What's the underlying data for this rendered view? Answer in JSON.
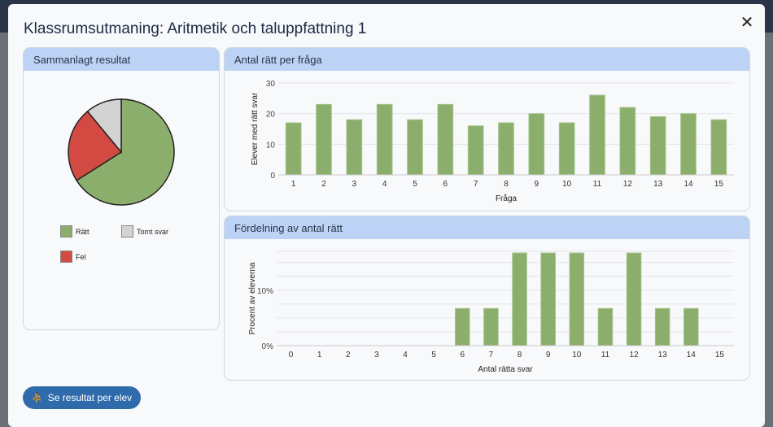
{
  "modal": {
    "title": "Klassrumsutmaning: Aritmetik och taluppfattning 1",
    "close_icon": "close-icon"
  },
  "cards": {
    "summary": "Sammanlagt resultat",
    "per_question": "Antal rätt per fråga",
    "distribution": "Fördelning av antal rätt"
  },
  "button": {
    "label": "Se resultat per elev",
    "icon": "people-icon"
  },
  "colors": {
    "green": "#8cae6c",
    "red": "#d34a43",
    "gray": "#d3d3d3"
  },
  "chart_data": [
    {
      "type": "pie",
      "title": "Sammanlagt resultat",
      "slices": [
        {
          "label": "Rätt",
          "value": 66,
          "color": "#8cae6c"
        },
        {
          "label": "Fel",
          "value": 23,
          "color": "#d34a43"
        },
        {
          "label": "Tomt svar",
          "value": 11,
          "color": "#d3d3d3"
        }
      ],
      "legend": "bottom"
    },
    {
      "type": "bar",
      "title": "Antal rätt per fråga",
      "xlabel": "Fråga",
      "ylabel": "Elever med rätt svar",
      "categories": [
        "1",
        "2",
        "3",
        "4",
        "5",
        "6",
        "7",
        "8",
        "9",
        "10",
        "11",
        "12",
        "13",
        "14",
        "15"
      ],
      "values": [
        17,
        23,
        18,
        23,
        18,
        23,
        16,
        17,
        20,
        17,
        26,
        22,
        19,
        20,
        18
      ],
      "ylim": [
        0,
        30
      ],
      "yticks": [
        "0",
        "10",
        "20",
        "30"
      ],
      "grid": true
    },
    {
      "type": "bar",
      "title": "Fördelning av antal rätt",
      "xlabel": "Antal rätta svar",
      "ylabel": "Procent av eleverna",
      "categories": [
        "0",
        "1",
        "2",
        "3",
        "4",
        "5",
        "6",
        "7",
        "8",
        "9",
        "10",
        "11",
        "12",
        "13",
        "14",
        "15"
      ],
      "values": [
        0,
        0,
        0,
        0,
        0,
        0,
        6.7,
        6.7,
        16.7,
        16.7,
        16.7,
        6.7,
        16.7,
        6.7,
        6.7,
        0
      ],
      "ylim": [
        0,
        17
      ],
      "yticks": [
        "0%",
        "10%"
      ],
      "grid": true
    }
  ]
}
